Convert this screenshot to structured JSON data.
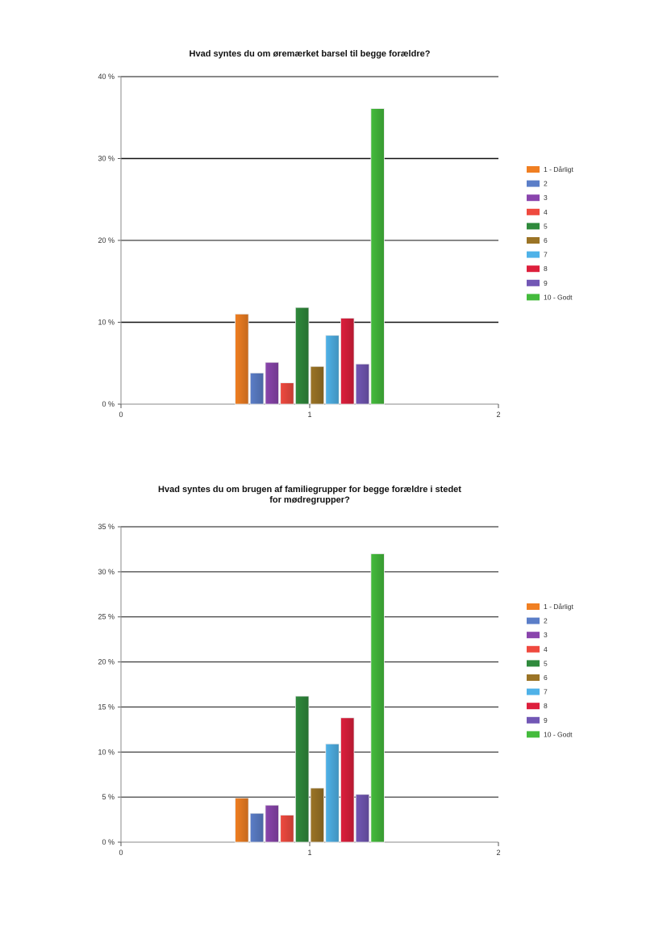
{
  "chart_data": [
    {
      "type": "bar",
      "title_lines": [
        "Hvad syntes du om øremærket barsel til begge forældre?"
      ],
      "x_ticks": [
        "0",
        "1",
        "2"
      ],
      "ylim": [
        0,
        40
      ],
      "y_ticks": [
        {
          "value": 0,
          "label": "0 %"
        },
        {
          "value": 10,
          "label": "10 %"
        },
        {
          "value": 20,
          "label": "20 %"
        },
        {
          "value": 30,
          "label": "30 %"
        },
        {
          "value": 40,
          "label": "40 %"
        }
      ],
      "grid": true,
      "legend_position": "right",
      "series": [
        {
          "name": "1 - Dårligt",
          "value": 11.0,
          "color": "#f07f22"
        },
        {
          "name": "2",
          "value": 3.8,
          "color": "#5b7ec8"
        },
        {
          "name": "3",
          "value": 5.1,
          "color": "#8a45ad"
        },
        {
          "name": "4",
          "value": 2.6,
          "color": "#ef4a3f"
        },
        {
          "name": "5",
          "value": 11.8,
          "color": "#2f8a3c"
        },
        {
          "name": "6",
          "value": 4.6,
          "color": "#9b7426"
        },
        {
          "name": "7",
          "value": 8.4,
          "color": "#4fb2e8"
        },
        {
          "name": "8",
          "value": 10.5,
          "color": "#dd1f3c"
        },
        {
          "name": "9",
          "value": 4.9,
          "color": "#7257b5"
        },
        {
          "name": "10 - Godt",
          "value": 36.1,
          "color": "#44bb3c"
        }
      ]
    },
    {
      "type": "bar",
      "title_lines": [
        "Hvad syntes du om brugen af familiegrupper for begge forældre i stedet",
        "for mødregrupper?"
      ],
      "x_ticks": [
        "0",
        "1",
        "2"
      ],
      "ylim": [
        0,
        35
      ],
      "y_ticks": [
        {
          "value": 0,
          "label": "0 %"
        },
        {
          "value": 5,
          "label": "5 %"
        },
        {
          "value": 10,
          "label": "10 %"
        },
        {
          "value": 15,
          "label": "15 %"
        },
        {
          "value": 20,
          "label": "20 %"
        },
        {
          "value": 25,
          "label": "25 %"
        },
        {
          "value": 30,
          "label": "30 %"
        },
        {
          "value": 35,
          "label": "35 %"
        }
      ],
      "grid": true,
      "legend_position": "right",
      "series": [
        {
          "name": "1 - Dårligt",
          "value": 4.9,
          "color": "#f07f22"
        },
        {
          "name": "2",
          "value": 3.2,
          "color": "#5b7ec8"
        },
        {
          "name": "3",
          "value": 4.1,
          "color": "#8a45ad"
        },
        {
          "name": "4",
          "value": 3.0,
          "color": "#ef4a3f"
        },
        {
          "name": "5",
          "value": 16.2,
          "color": "#2f8a3c"
        },
        {
          "name": "6",
          "value": 6.0,
          "color": "#9b7426"
        },
        {
          "name": "7",
          "value": 10.9,
          "color": "#4fb2e8"
        },
        {
          "name": "8",
          "value": 13.8,
          "color": "#dd1f3c"
        },
        {
          "name": "9",
          "value": 5.3,
          "color": "#7257b5"
        },
        {
          "name": "10 - Godt",
          "value": 32.0,
          "color": "#44bb3c"
        }
      ]
    }
  ]
}
